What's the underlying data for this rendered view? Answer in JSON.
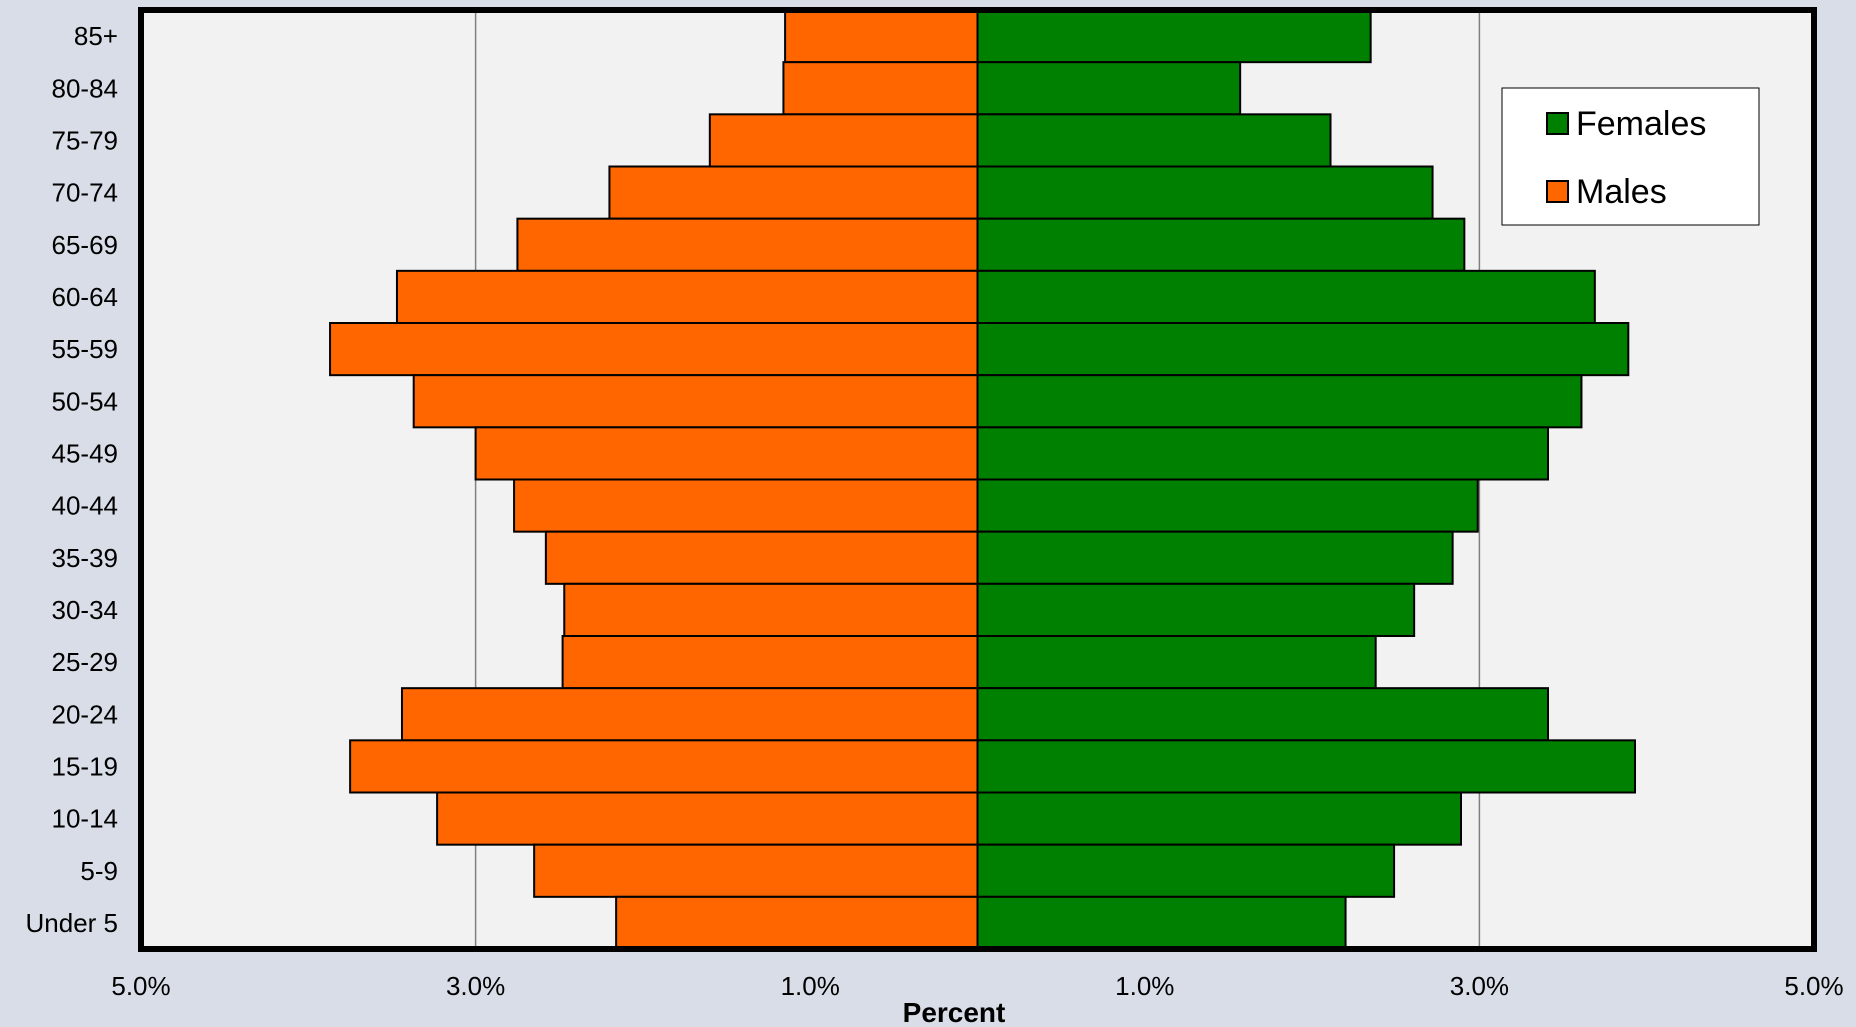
{
  "chart_data": {
    "type": "bar",
    "orientation": "horizontal",
    "chart_subtype": "population-pyramid",
    "categories": [
      "85+",
      "80-84",
      "75-79",
      "70-74",
      "65-69",
      "60-64",
      "55-59",
      "50-54",
      "45-49",
      "40-44",
      "35-39",
      "30-34",
      "25-29",
      "20-24",
      "15-19",
      "10-14",
      "5-9",
      "Under 5"
    ],
    "series": [
      {
        "name": "Females",
        "color": "#008000",
        "side": "right",
        "values": [
          2.35,
          1.57,
          2.11,
          2.72,
          2.91,
          3.69,
          3.89,
          3.61,
          3.41,
          2.99,
          2.84,
          2.61,
          2.38,
          3.41,
          3.93,
          2.89,
          2.49,
          2.2
        ]
      },
      {
        "name": "Males",
        "color": "#ff6600",
        "side": "left",
        "values": [
          1.15,
          1.16,
          1.6,
          2.2,
          2.75,
          3.47,
          3.87,
          3.37,
          3.0,
          2.77,
          2.58,
          2.47,
          2.48,
          3.44,
          3.75,
          3.23,
          2.65,
          2.16
        ]
      }
    ],
    "xlim": [
      -5.0,
      5.0
    ],
    "x_ticks": [
      -5.0,
      -3.0,
      -1.0,
      1.0,
      3.0,
      5.0
    ],
    "x_tick_labels": [
      "5.0%",
      "3.0%",
      "1.0%",
      "1.0%",
      "3.0%",
      "5.0%"
    ],
    "xlabel": "Percent",
    "ylabel": "",
    "grid": "vertical",
    "legend": {
      "position": "top-right",
      "entries": [
        "Females",
        "Males"
      ]
    },
    "plot_background": "#f2f2f2"
  }
}
